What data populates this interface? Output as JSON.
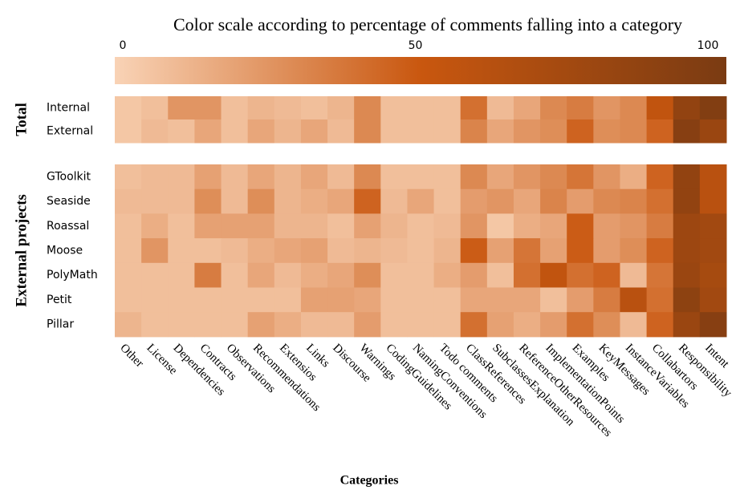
{
  "chart_data": {
    "type": "heatmap",
    "title": "Color scale according to percentage of comments falling into a category",
    "xlabel": "Categories",
    "categories": [
      "Other",
      "License",
      "Dependencies",
      "Contracts",
      "Observations",
      "Recommendations",
      "Extensios",
      "Links",
      "Discourse",
      "Warnings",
      "CodingGuidelines",
      "NamingConventions",
      "Todo comments",
      "ClassReferences",
      "SubclassesExplanation",
      "ReferenceOtherResources",
      "ImplementationPoints",
      "Examples",
      "KeyMessages",
      "InstanceVariables",
      "Collabartors",
      "Responsibility",
      "Intent"
    ],
    "groups": [
      {
        "name": "Total",
        "rows": [
          "Internal",
          "External"
        ],
        "values": [
          [
            5,
            8,
            25,
            25,
            8,
            12,
            10,
            8,
            12,
            30,
            8,
            8,
            8,
            40,
            10,
            18,
            30,
            35,
            25,
            30,
            55,
            85,
            95
          ],
          [
            5,
            10,
            8,
            18,
            8,
            18,
            12,
            18,
            10,
            30,
            8,
            8,
            8,
            32,
            18,
            25,
            28,
            45,
            28,
            30,
            45,
            92,
            80
          ]
        ]
      },
      {
        "name": "External projects",
        "rows": [
          "GToolkit",
          "Seaside",
          "Roassal",
          "Moose",
          "PolyMath",
          "Petit",
          "Pillar"
        ],
        "values": [
          [
            8,
            10,
            10,
            20,
            10,
            18,
            12,
            18,
            10,
            30,
            8,
            8,
            8,
            30,
            18,
            25,
            30,
            38,
            25,
            15,
            45,
            85,
            60
          ],
          [
            10,
            10,
            10,
            28,
            10,
            28,
            12,
            15,
            18,
            45,
            10,
            18,
            8,
            22,
            25,
            18,
            32,
            22,
            30,
            32,
            40,
            85,
            60
          ],
          [
            8,
            15,
            8,
            20,
            20,
            20,
            12,
            12,
            8,
            20,
            12,
            8,
            10,
            25,
            5,
            15,
            18,
            48,
            22,
            25,
            35,
            78,
            75
          ],
          [
            8,
            25,
            8,
            8,
            10,
            15,
            18,
            20,
            10,
            12,
            10,
            8,
            12,
            48,
            20,
            38,
            20,
            48,
            22,
            28,
            45,
            78,
            75
          ],
          [
            8,
            8,
            8,
            35,
            8,
            18,
            10,
            15,
            18,
            28,
            8,
            8,
            15,
            22,
            8,
            40,
            55,
            40,
            45,
            10,
            38,
            80,
            72
          ],
          [
            8,
            8,
            8,
            8,
            8,
            8,
            8,
            20,
            20,
            18,
            8,
            8,
            8,
            18,
            18,
            18,
            8,
            22,
            35,
            60,
            40,
            88,
            75
          ],
          [
            12,
            8,
            8,
            8,
            8,
            20,
            15,
            10,
            10,
            22,
            8,
            8,
            8,
            40,
            20,
            15,
            22,
            40,
            28,
            10,
            45,
            80,
            92
          ]
        ]
      }
    ],
    "zlim": [
      0,
      100
    ],
    "zticks": [
      0,
      50,
      100
    ],
    "colors": [
      "#f9d3b6",
      "#c9570f",
      "#7a3b12"
    ]
  }
}
